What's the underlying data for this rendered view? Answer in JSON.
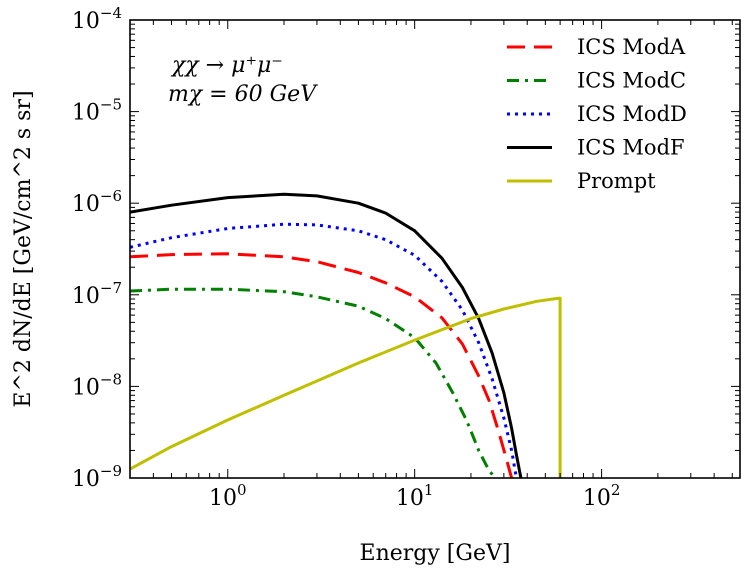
{
  "chart_data": {
    "type": "line",
    "title": "",
    "xlabel": "Energy [GeV]",
    "ylabel": "E^2 dN/dE [GeV/cm^2 s sr]",
    "xscale": "log",
    "yscale": "log",
    "xlim": [
      0.3,
      550
    ],
    "ylim": [
      1e-09,
      0.0001
    ],
    "grid": false,
    "legend_position": "top-right",
    "x_ticks": [
      {
        "value": 1,
        "base": "10",
        "exp": "0"
      },
      {
        "value": 10,
        "base": "10",
        "exp": "1"
      },
      {
        "value": 100,
        "base": "10",
        "exp": "2"
      }
    ],
    "y_ticks": [
      {
        "value": 1e-09,
        "base": "10",
        "exp": "−9"
      },
      {
        "value": 1e-08,
        "base": "10",
        "exp": "−8"
      },
      {
        "value": 1e-07,
        "base": "10",
        "exp": "−7"
      },
      {
        "value": 1e-06,
        "base": "10",
        "exp": "−6"
      },
      {
        "value": 1e-05,
        "base": "10",
        "exp": "−5"
      },
      {
        "value": 0.0001,
        "base": "10",
        "exp": "−4"
      }
    ],
    "annotations": [
      "χχ → μ⁺μ⁻",
      "mχ = 60 GeV"
    ],
    "series": [
      {
        "name": "ICS ModA",
        "color": "#ff0000",
        "style": "dashed",
        "points": [
          [
            0.3,
            2.6e-07
          ],
          [
            0.5,
            2.75e-07
          ],
          [
            1,
            2.8e-07
          ],
          [
            2,
            2.6e-07
          ],
          [
            3,
            2.3e-07
          ],
          [
            5,
            1.75e-07
          ],
          [
            7,
            1.35e-07
          ],
          [
            10,
            9.5e-08
          ],
          [
            14,
            5.6e-08
          ],
          [
            18,
            2.9e-08
          ],
          [
            22,
            1.3e-08
          ],
          [
            25,
            7e-09
          ],
          [
            28,
            3.3e-09
          ],
          [
            31,
            1.6e-09
          ],
          [
            33,
            1e-09
          ]
        ]
      },
      {
        "name": "ICS ModC",
        "color": "#008000",
        "style": "dashdot",
        "points": [
          [
            0.3,
            1.1e-07
          ],
          [
            0.5,
            1.15e-07
          ],
          [
            1,
            1.15e-07
          ],
          [
            2,
            1.08e-07
          ],
          [
            3,
            9.5e-08
          ],
          [
            5,
            7.5e-08
          ],
          [
            7,
            5.5e-08
          ],
          [
            10,
            3.4e-08
          ],
          [
            13,
            1.8e-08
          ],
          [
            16,
            8.5e-09
          ],
          [
            19,
            4.2e-09
          ],
          [
            22,
            2e-09
          ],
          [
            25,
            1.2e-09
          ],
          [
            27,
            1e-09
          ]
        ]
      },
      {
        "name": "ICS ModD",
        "color": "#0000ff",
        "style": "dotted",
        "points": [
          [
            0.3,
            3.3e-07
          ],
          [
            0.5,
            4.2e-07
          ],
          [
            1,
            5.3e-07
          ],
          [
            2,
            5.9e-07
          ],
          [
            3,
            5.8e-07
          ],
          [
            5,
            5e-07
          ],
          [
            7,
            4e-07
          ],
          [
            10,
            2.7e-07
          ],
          [
            14,
            1.4e-07
          ],
          [
            18,
            6.8e-08
          ],
          [
            22,
            3e-08
          ],
          [
            26,
            1.2e-08
          ],
          [
            30,
            4.5e-09
          ],
          [
            33,
            2e-09
          ],
          [
            35,
            1e-09
          ]
        ]
      },
      {
        "name": "ICS ModF",
        "color": "#000000",
        "style": "solid",
        "points": [
          [
            0.3,
            8e-07
          ],
          [
            0.5,
            9.5e-07
          ],
          [
            1,
            1.15e-06
          ],
          [
            2,
            1.25e-06
          ],
          [
            3,
            1.2e-06
          ],
          [
            5,
            1e-06
          ],
          [
            7,
            7.8e-07
          ],
          [
            10,
            5e-07
          ],
          [
            14,
            2.5e-07
          ],
          [
            18,
            1.2e-07
          ],
          [
            22,
            5.5e-08
          ],
          [
            26,
            2.3e-08
          ],
          [
            30,
            8.5e-09
          ],
          [
            33,
            3.5e-09
          ],
          [
            35,
            1.8e-09
          ],
          [
            37,
            1e-09
          ]
        ]
      },
      {
        "name": "Prompt",
        "color": "#bfbf00",
        "style": "solid",
        "points": [
          [
            0.3,
            1.25e-09
          ],
          [
            0.5,
            2.2e-09
          ],
          [
            1,
            4.3e-09
          ],
          [
            2,
            8e-09
          ],
          [
            5,
            1.8e-08
          ],
          [
            10,
            3.2e-08
          ],
          [
            20,
            5.5e-08
          ],
          [
            30,
            7e-08
          ],
          [
            45,
            8.5e-08
          ],
          [
            55,
            9e-08
          ],
          [
            60,
            9.2e-08
          ],
          [
            60,
            1e-09
          ]
        ]
      }
    ]
  }
}
